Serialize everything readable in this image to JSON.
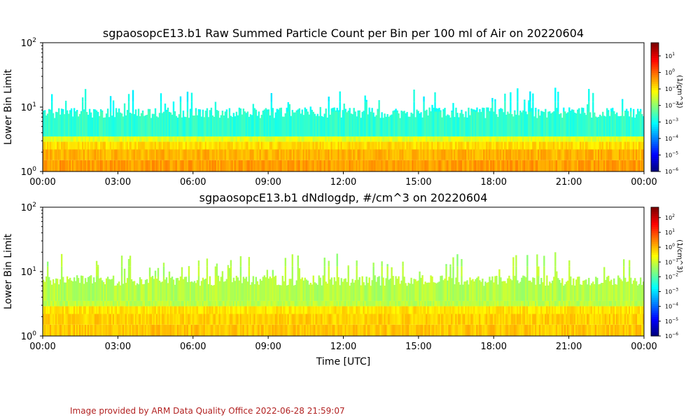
{
  "footer": "Image provided by ARM Data Quality Office 2022-06-28 21:59:07",
  "chart_data": [
    {
      "type": "heatmap",
      "title": "sgpaosopcE13.b1 Raw Summed Particle Count per Bin per 100 ml of Air on 20220604",
      "xlabel": "",
      "ylabel": "Lower Bin Limit",
      "x_ticks": [
        "00:00",
        "03:00",
        "06:00",
        "09:00",
        "12:00",
        "15:00",
        "18:00",
        "21:00",
        "00:00"
      ],
      "xlim": [
        0,
        24
      ],
      "y_scale": "log",
      "ylim": [
        1,
        100
      ],
      "y_ticks": [
        "10^0",
        "10^1",
        "10^2"
      ],
      "colorbar_label": "(1/cm^3)",
      "colorbar_scale": "log",
      "colorbar_ticks": [
        "10^-6",
        "10^-5",
        "10^-4",
        "10^-3",
        "10^-2",
        "10^-1",
        "10^0",
        "10^1"
      ],
      "colorbar_range": [
        -6,
        1.8
      ],
      "colormap": "jet",
      "bands": [
        {
          "y_from": 1.0,
          "y_to": 1.5,
          "level": 0.72
        },
        {
          "y_from": 1.5,
          "y_to": 2.2,
          "level": 0.7
        },
        {
          "y_from": 2.2,
          "y_to": 2.9,
          "level": 0.66
        },
        {
          "y_from": 2.9,
          "y_to": 3.5,
          "level": 0.6
        },
        {
          "y_from": 3.5,
          "y_to": 8.5,
          "level": 0.42
        },
        {
          "y_from": 8.5,
          "y_to": 12,
          "level": 0.4
        },
        {
          "y_from": 12,
          "y_to": 20,
          "level": 0.38
        }
      ],
      "typical_top": 9,
      "max_top": 21
    },
    {
      "type": "heatmap",
      "title": "sgpaosopcE13.b1 dNdlogdp, #/cm^3 on 20220604",
      "xlabel": "Time [UTC]",
      "ylabel": "Lower Bin Limit",
      "x_ticks": [
        "00:00",
        "03:00",
        "06:00",
        "09:00",
        "12:00",
        "15:00",
        "18:00",
        "21:00",
        "00:00"
      ],
      "xlim": [
        0,
        24
      ],
      "y_scale": "log",
      "ylim": [
        1,
        100
      ],
      "y_ticks": [
        "10^0",
        "10^1",
        "10^2"
      ],
      "colorbar_label": "(1/cm^3)",
      "colorbar_scale": "log",
      "colorbar_ticks": [
        "10^-6",
        "10^-5",
        "10^-4",
        "10^-3",
        "10^-2",
        "10^-1",
        "10^0",
        "10^1",
        "10^2"
      ],
      "colorbar_range": [
        -6,
        2.7
      ],
      "colormap": "jet",
      "bands": [
        {
          "y_from": 1.0,
          "y_to": 1.5,
          "level": 0.68
        },
        {
          "y_from": 1.5,
          "y_to": 2.2,
          "level": 0.67
        },
        {
          "y_from": 2.2,
          "y_to": 2.9,
          "level": 0.65
        },
        {
          "y_from": 2.9,
          "y_to": 3.5,
          "level": 0.56
        },
        {
          "y_from": 3.5,
          "y_to": 8.5,
          "level": 0.55
        },
        {
          "y_from": 8.5,
          "y_to": 12,
          "level": 0.55
        },
        {
          "y_from": 12,
          "y_to": 20,
          "level": 0.54
        }
      ],
      "typical_top": 8,
      "max_top": 20
    }
  ]
}
